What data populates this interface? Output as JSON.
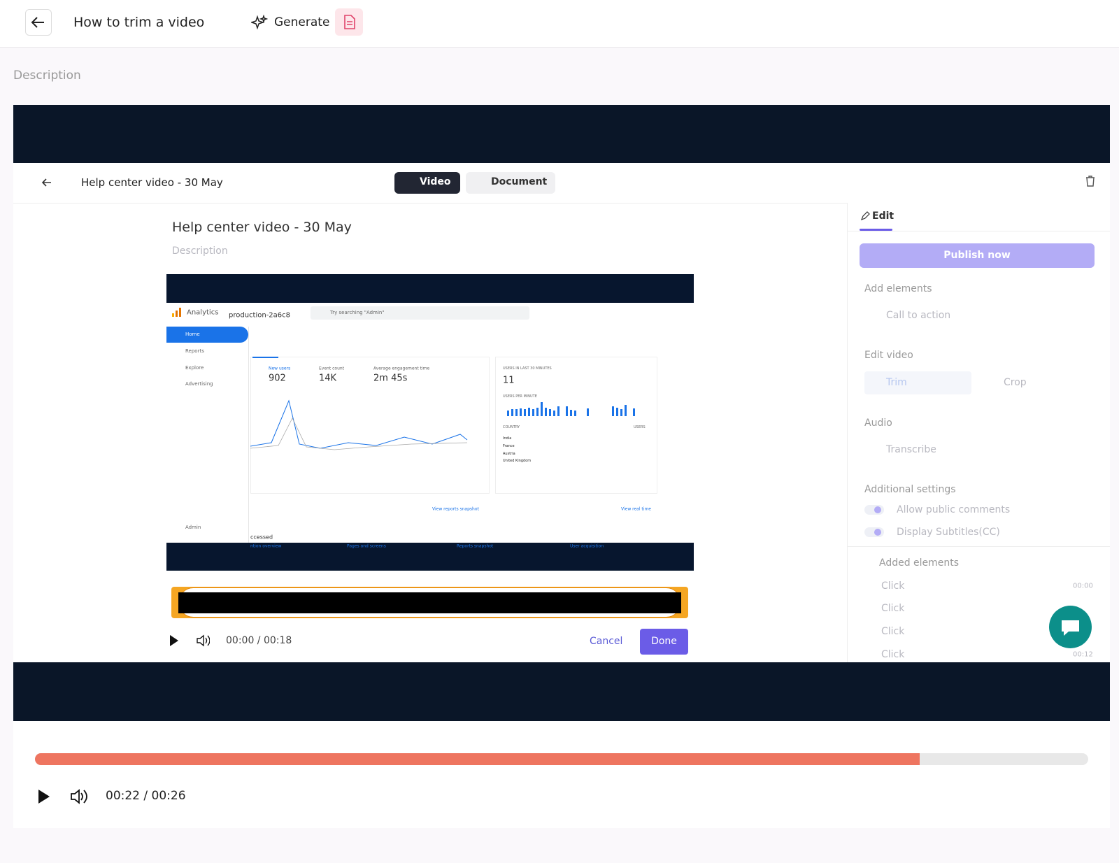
{
  "header": {
    "title": "How to trim a video",
    "generate": "Generate"
  },
  "description": "Description",
  "recording": {
    "app_header": {
      "title": "Help center video - 30 May",
      "tabs": [
        "Video",
        "Document"
      ]
    },
    "main": {
      "title": "Help center video - 30 May",
      "description": "Description",
      "analytics": {
        "product": "Analytics",
        "property": "production-2a6c8",
        "search": "Try searching \"Admin\"",
        "nav": [
          "Home",
          "Reports",
          "Explore",
          "Advertising"
        ],
        "admin": "Admin",
        "metrics": [
          {
            "label": "New users",
            "value": "902"
          },
          {
            "label": "Event count",
            "value": "14K"
          },
          {
            "label": "Average engagement time",
            "value": "2m 45s"
          }
        ],
        "realtime": {
          "label": "USERS IN LAST 30 MINUTES",
          "value": "11",
          "sublabel": "USERS PER MINUTE",
          "country": "COUNTRY",
          "users": "USERS",
          "countries": [
            "India",
            "France",
            "Austria",
            "United Kingdom"
          ]
        },
        "links": [
          "View reports snapshot",
          "View real time"
        ],
        "recent": "ccessed",
        "cards": [
          "ntion overview",
          "Pages and screens",
          "Reports snapshot",
          "User acquisition"
        ]
      },
      "trim": {
        "time": "00:00 / 00:18",
        "cancel": "Cancel",
        "done": "Done"
      }
    },
    "panel": {
      "tab": "Edit",
      "publish": "Publish now",
      "add_elements": "Add elements",
      "call_to_action": "Call to action",
      "edit_video": "Edit video",
      "trim": "Trim",
      "crop": "Crop",
      "audio": "Audio",
      "transcribe": "Transcribe",
      "additional_settings": "Additional settings",
      "allow_comments": "Allow public comments",
      "subtitles": "Display Subtitles(CC)",
      "added_elements": {
        "title": "Added elements",
        "items": [
          {
            "label": "Click",
            "time": "00:00"
          },
          {
            "label": "Click"
          },
          {
            "label": "Click"
          },
          {
            "label": "Click",
            "time": "00:12"
          }
        ]
      }
    }
  },
  "player": {
    "time": "00:22 / 00:26",
    "progress": 84
  }
}
